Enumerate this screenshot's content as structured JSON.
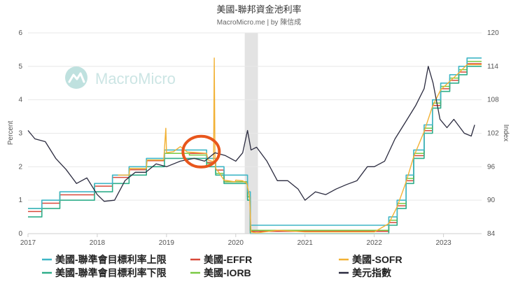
{
  "colors": {
    "upper": "#3fb6c6",
    "lower": "#2fae8a",
    "effr": "#d8493a",
    "iorb": "#7ac943",
    "sofr": "#f2b134",
    "dxy": "#2b2b3f",
    "shade": "#e3e3e3",
    "grid": "#e8e8e8",
    "watermark": "#b9dedc"
  },
  "watermark": {
    "text": "MacroMicro",
    "icon": "macromicro-logo-icon"
  },
  "annotation": {
    "type": "circle",
    "color": "#e8561c",
    "at_x": 2019.5,
    "at_y": 2.45
  },
  "chart_data": {
    "type": "line",
    "title": "美國-聯邦資金池利率",
    "subtitle": "MacroMicro.me | by 陳信成",
    "xlabel": "",
    "ylabel": "Percent",
    "y2label": "Index",
    "xlim": [
      2017.0,
      2023.55
    ],
    "ylim": [
      0,
      6
    ],
    "y2lim": [
      84,
      120
    ],
    "x_ticks": [
      2017,
      2018,
      2019,
      2020,
      2021,
      2022,
      2023
    ],
    "y_ticks": [
      0,
      1,
      2,
      3,
      4,
      5,
      6
    ],
    "y2_ticks": [
      84,
      90,
      96,
      102,
      108,
      114,
      120
    ],
    "grid": true,
    "legend_position": "bottom",
    "recession_shading": [
      [
        2020.13,
        2020.32
      ]
    ],
    "series": [
      {
        "name": "美國-聯準會目標利率上限",
        "key": "upper",
        "axis": "left",
        "step": true,
        "x": [
          2017.0,
          2017.2,
          2017.46,
          2017.96,
          2018.22,
          2018.46,
          2018.71,
          2018.97,
          2019.58,
          2019.71,
          2019.83,
          2020.17,
          2020.21,
          2022.21,
          2022.33,
          2022.46,
          2022.57,
          2022.72,
          2022.84,
          2022.96,
          2023.09,
          2023.22,
          2023.34,
          2023.55
        ],
        "y": [
          0.75,
          1.0,
          1.25,
          1.5,
          1.75,
          2.0,
          2.25,
          2.5,
          2.25,
          2.0,
          1.75,
          1.25,
          0.25,
          0.5,
          1.0,
          1.75,
          2.5,
          3.25,
          4.0,
          4.5,
          4.75,
          5.0,
          5.25,
          5.25
        ]
      },
      {
        "name": "美國-聯準會目標利率下限",
        "key": "lower",
        "axis": "left",
        "step": true,
        "x": [
          2017.0,
          2017.2,
          2017.46,
          2017.96,
          2018.22,
          2018.46,
          2018.71,
          2018.97,
          2019.58,
          2019.71,
          2019.83,
          2020.17,
          2020.21,
          2022.21,
          2022.33,
          2022.46,
          2022.57,
          2022.72,
          2022.84,
          2022.96,
          2023.09,
          2023.22,
          2023.34,
          2023.55
        ],
        "y": [
          0.5,
          0.75,
          1.0,
          1.25,
          1.5,
          1.75,
          2.0,
          2.25,
          2.0,
          1.75,
          1.5,
          1.0,
          0.0,
          0.25,
          0.75,
          1.5,
          2.25,
          3.0,
          3.75,
          4.25,
          4.5,
          4.75,
          5.0,
          5.0
        ]
      },
      {
        "name": "美國-EFFR",
        "key": "effr",
        "axis": "left",
        "step": true,
        "x": [
          2017.0,
          2017.2,
          2017.46,
          2017.96,
          2018.22,
          2018.46,
          2018.71,
          2018.97,
          2019.58,
          2019.71,
          2019.83,
          2020.17,
          2020.21,
          2022.21,
          2022.33,
          2022.46,
          2022.57,
          2022.72,
          2022.84,
          2022.96,
          2023.09,
          2023.22,
          2023.34,
          2023.55
        ],
        "y": [
          0.66,
          0.91,
          1.16,
          1.42,
          1.68,
          1.91,
          2.18,
          2.4,
          2.13,
          1.9,
          1.55,
          1.1,
          0.07,
          0.33,
          0.83,
          1.58,
          2.33,
          3.08,
          3.83,
          4.33,
          4.58,
          4.83,
          5.08,
          5.08
        ]
      },
      {
        "name": "美國-IORB",
        "key": "iorb",
        "axis": "left",
        "step": true,
        "x": [
          2017.0,
          2017.2,
          2017.46,
          2017.96,
          2018.22,
          2018.46,
          2018.71,
          2018.97,
          2019.33,
          2019.58,
          2019.71,
          2019.83,
          2020.17,
          2020.21,
          2022.21,
          2022.33,
          2022.46,
          2022.57,
          2022.72,
          2022.84,
          2022.96,
          2023.09,
          2023.22,
          2023.34,
          2023.55
        ],
        "y": [
          0.75,
          1.0,
          1.25,
          1.5,
          1.75,
          1.95,
          2.2,
          2.4,
          2.35,
          2.1,
          1.8,
          1.55,
          1.1,
          0.1,
          0.4,
          0.9,
          1.65,
          2.4,
          3.15,
          3.9,
          4.4,
          4.65,
          4.9,
          5.15,
          5.15
        ]
      },
      {
        "name": "美國-SOFR",
        "key": "sofr",
        "axis": "left",
        "step": false,
        "x": [
          2018.3,
          2018.46,
          2018.47,
          2018.71,
          2018.72,
          2018.96,
          2018.99,
          2019.0,
          2019.1,
          2019.2,
          2019.3,
          2019.45,
          2019.58,
          2019.6,
          2019.68,
          2019.69,
          2019.7,
          2019.71,
          2019.75,
          2019.83,
          2019.99,
          2020.0,
          2020.1,
          2020.16,
          2020.2,
          2020.22,
          2020.3,
          2020.6,
          2021.0,
          2021.5,
          2022.0,
          2022.21,
          2022.33,
          2022.46,
          2022.57,
          2022.72,
          2022.84,
          2022.96,
          2023.09,
          2023.22,
          2023.34,
          2023.55
        ],
        "y": [
          1.75,
          1.75,
          1.95,
          1.95,
          2.2,
          2.2,
          3.15,
          2.42,
          2.45,
          2.6,
          2.44,
          2.42,
          2.4,
          2.2,
          2.15,
          5.25,
          2.35,
          1.95,
          1.85,
          1.6,
          1.55,
          1.6,
          1.58,
          1.5,
          1.1,
          0.05,
          0.02,
          0.1,
          0.05,
          0.05,
          0.05,
          0.3,
          0.8,
          1.55,
          2.3,
          3.05,
          3.8,
          4.3,
          4.55,
          4.8,
          5.05,
          5.05
        ]
      },
      {
        "name": "美元指數",
        "key": "dxy",
        "axis": "right",
        "step": false,
        "x": [
          2017.0,
          2017.1,
          2017.25,
          2017.4,
          2017.55,
          2017.7,
          2017.85,
          2018.0,
          2018.1,
          2018.25,
          2018.4,
          2018.55,
          2018.7,
          2018.85,
          2019.0,
          2019.2,
          2019.4,
          2019.55,
          2019.7,
          2019.85,
          2020.0,
          2020.1,
          2020.17,
          2020.22,
          2020.3,
          2020.45,
          2020.6,
          2020.75,
          2020.9,
          2021.0,
          2021.15,
          2021.3,
          2021.45,
          2021.6,
          2021.75,
          2021.9,
          2022.0,
          2022.15,
          2022.3,
          2022.45,
          2022.6,
          2022.72,
          2022.78,
          2022.85,
          2022.95,
          2023.05,
          2023.15,
          2023.3,
          2023.4,
          2023.45
        ],
        "y": [
          102.5,
          101.0,
          100.5,
          97.5,
          95.5,
          93.0,
          94.0,
          91.0,
          89.8,
          90.0,
          93.5,
          95.0,
          95.0,
          96.5,
          96.0,
          97.0,
          97.5,
          97.0,
          98.5,
          98.0,
          97.0,
          98.5,
          102.5,
          99.0,
          99.5,
          97.0,
          93.5,
          93.5,
          92.0,
          90.0,
          91.5,
          91.0,
          92.0,
          92.8,
          93.5,
          96.0,
          96.0,
          97.0,
          101.0,
          104.0,
          107.0,
          110.0,
          114.0,
          111.0,
          104.5,
          103.0,
          104.5,
          102.0,
          101.5,
          103.5
        ]
      }
    ]
  }
}
